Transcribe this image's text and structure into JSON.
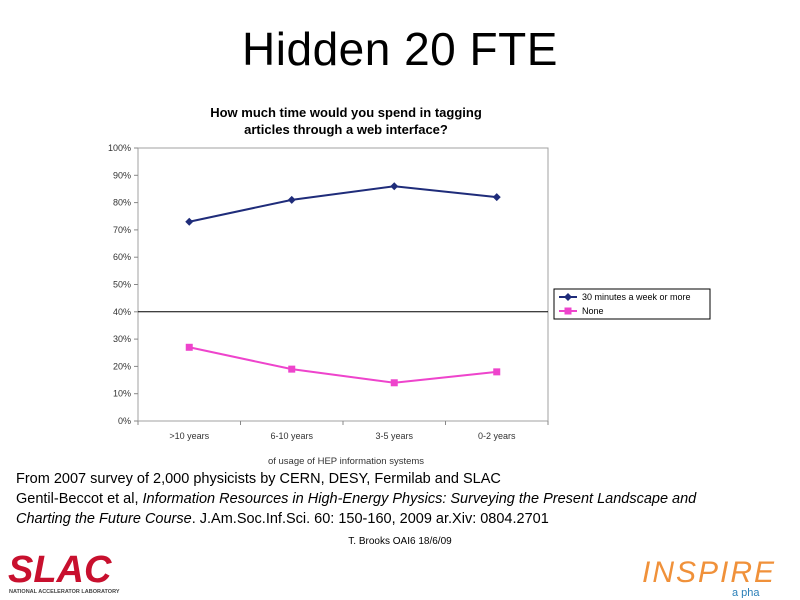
{
  "slide": {
    "title": "Hidden 20 FTE",
    "caption": {
      "line1": "From 2007 survey of 2,000 physicists by CERN, DESY, Fermilab and SLAC",
      "line2_prefix": "Gentil-Beccot et al, ",
      "line2_italic": "Information Resources in High-Energy Physics: Surveying the Present Landscape and",
      "line3_italic": "Charting the Future Course",
      "line3_suffix": ". J.Am.Soc.Inf.Sci. 60: 150-160, 2009 ar.Xiv: 0804.2701"
    },
    "footer_note": "T. Brooks OAI6 18/6/09"
  },
  "logos": {
    "slac": {
      "text": "SLAC",
      "subtext": "NATIONAL ACCELERATOR LABORATORY",
      "color": "#c8102e"
    },
    "inspire": {
      "text": "INSPIRE",
      "subtext": "a pha",
      "color": "#f0913a",
      "secondary_color": "#2a7fb8"
    }
  },
  "chart_data": {
    "type": "line",
    "title_lines": [
      "How much time would you spend in tagging",
      "articles through a web interface?"
    ],
    "xlabel": "of usage of HEP information systems",
    "ylabel": "",
    "categories": [
      ">10 years",
      "6-10 years",
      "3-5 years",
      "0-2 years"
    ],
    "ylim": [
      0,
      100
    ],
    "yticks": [
      "0%",
      "10%",
      "20%",
      "30%",
      "40%",
      "50%",
      "60%",
      "70%",
      "80%",
      "90%",
      "100%"
    ],
    "grid": false,
    "reference_line": 40,
    "legend_position": "right",
    "series": [
      {
        "name": "30 minutes a week or more",
        "values": [
          73,
          81,
          86,
          82
        ],
        "color": "#1f2c7a",
        "marker": "diamond"
      },
      {
        "name": "None",
        "values": [
          27,
          19,
          14,
          18
        ],
        "color": "#ee44cc",
        "marker": "square"
      }
    ]
  }
}
